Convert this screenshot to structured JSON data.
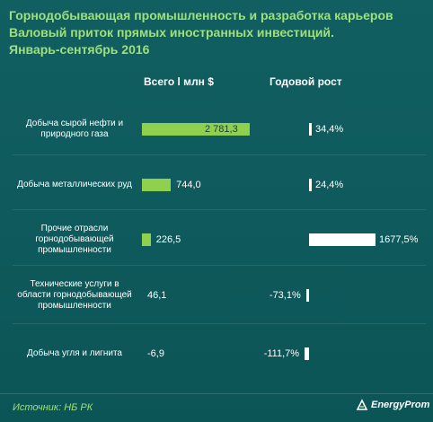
{
  "title": {
    "line1": "Горнодобывающая промышленность и разработка карьеров",
    "line2": "Валовый приток прямых иностранных инвестиций.",
    "line3": "Январь-сентябрь 2016"
  },
  "source": "Источник: НБ РК",
  "logo": {
    "text": "EnergyProm"
  },
  "chart_data": [
    {
      "type": "bar",
      "title": "Всего l млн $",
      "categories": [
        "Добыча сырой нефти и природного газа",
        "Добыча металлических руд",
        "Прочие отрасли горнодобывающей промышленности",
        "Технические услуги в области горнодобывающей промышленности",
        "Добыча угля и лигнита"
      ],
      "values": [
        2781.3,
        744.0,
        226.5,
        46.1,
        -6.9
      ],
      "value_labels": [
        "2 781,3",
        "744,0",
        "226,5",
        "46,1",
        "-6,9"
      ],
      "bar_color": "#8fd14f"
    },
    {
      "type": "bar",
      "title": "Годовой рост",
      "categories": [
        "Добыча сырой нефти и природного газа",
        "Добыча металлических руд",
        "Прочие отрасли горнодобывающей промышленности",
        "Технические услуги в области горнодобывающей промышленности",
        "Добыча угля и лигнита"
      ],
      "values": [
        34.4,
        24.4,
        1677.5,
        -73.1,
        -111.7
      ],
      "unit": "%",
      "value_labels": [
        "34,4%",
        "24,4%",
        "1677,5%",
        "-73,1%",
        "-111,7%"
      ],
      "bar_color": "#ffffff"
    }
  ]
}
